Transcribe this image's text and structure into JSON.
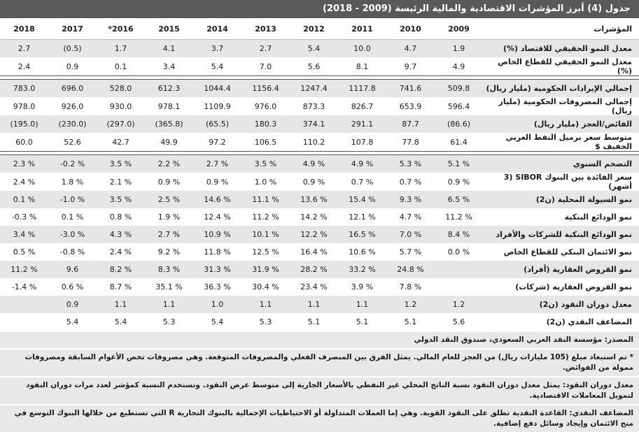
{
  "title": "جدول (4) أبرز المؤشرات الاقتصادية والمالية الرئيسة (2009 - 2018)",
  "table": {
    "header": [
      "المؤشرات",
      "2009",
      "2010",
      "2011",
      "2012",
      "2013",
      "2014",
      "2015",
      "2016*",
      "2017",
      "2018"
    ],
    "groups": [
      {
        "rows": [
          {
            "label": "معدل النمو الحقيقي للاقتصاد (%)",
            "values": [
              "1.9",
              "4.7",
              "10.0",
              "5.4",
              "2.7",
              "3.7",
              "4.1",
              "1.7",
              "(0.5)",
              "2.7"
            ]
          },
          {
            "label": "معدل النمو الحقيقي للقطاع الخاص (%)",
            "values": [
              "4.9",
              "9.7",
              "8.1",
              "5.6",
              "7.0",
              "5.4",
              "3.4",
              "0.1",
              "0.9",
              "2.4"
            ]
          }
        ]
      },
      {
        "rows": [
          {
            "label": "إجمالي الإيرادات الحكومية (مليار ريال)",
            "values": [
              "509.8",
              "741.6",
              "1117.8",
              "1247.4",
              "1156.4",
              "1044.4",
              "612.3",
              "528.0",
              "696.0",
              "783.0"
            ]
          },
          {
            "label": "إجمالي المصروفات الحكومية (مليار ريال)",
            "values": [
              "596.4",
              "653.9",
              "826.7",
              "873.3",
              "976.0",
              "1109.9",
              "978.1",
              "930.0",
              "926.0",
              "978.0"
            ]
          },
          {
            "label": "الفائض/العجز (مليار ريال)",
            "values": [
              "(86.6)",
              "87.7",
              "291.1",
              "374.1",
              "180.3",
              "(65.5)",
              "(365.8)",
              "(297.0)",
              "(230.0)",
              "(195.0)"
            ]
          },
          {
            "label": "متوسط سعر برميل النفط العربي الخفيف $",
            "values": [
              "61.4",
              "77.8",
              "107.8",
              "110.2",
              "106.5",
              "97.2",
              "49.9",
              "42.7",
              "52.6",
              "60.0"
            ]
          }
        ]
      },
      {
        "rows": [
          {
            "label": "التضخم السنوي",
            "values": [
              "5.1 %",
              "5.3 %",
              "4.9 %",
              "4.9 %",
              "3.5 %",
              "2.7 %",
              "2.2 %",
              "3.5 %",
              "-0.2 %",
              "2.3 %"
            ]
          },
          {
            "label": "سعر الفائدة بين البنوك SIBOR (3 أشهر)",
            "values": [
              "0.9 %",
              "0.7 %",
              "0.7 %",
              "0.9 %",
              "1.0 %",
              "0.9 %",
              "0.9 %",
              "2.1 %",
              "1.8 %",
              "2.4 %"
            ]
          },
          {
            "label": "نمو السيولة المحلية (ن2)",
            "values": [
              "6.5 %",
              "9.3 %",
              "15.4 %",
              "13.6 %",
              "11.1 %",
              "14.6 %",
              "2.5 %",
              "3.5 %",
              "-1.0 %",
              "0.1 %"
            ]
          },
          {
            "label": "نمو الودائع البنكية",
            "values": [
              "11.2 %",
              "4.7 %",
              "12.1 %",
              "14.2 %",
              "11.2 %",
              "12.4 %",
              "1.9 %",
              "0.8 %",
              "0.1 %",
              "-0.3 %"
            ]
          },
          {
            "label": "نمو الودائع البنكية للشركات والأفراد",
            "values": [
              "8.4 %",
              "7.0 %",
              "16.5 %",
              "12.2 %",
              "10.1 %",
              "10.9 %",
              "2.7 %",
              "4.3 %",
              "-3.0 %",
              "3.4 %"
            ]
          },
          {
            "label": "نمو الائتمان البنكي للقطاع الخاص",
            "values": [
              "0.0 %",
              "5.7 %",
              "10.6 %",
              "16.4 %",
              "12.5 %",
              "11.8 %",
              "9.2 %",
              "2.4 %",
              "-0.8 %",
              "0.5 %"
            ]
          },
          {
            "label": "نمو القروض العقارية (أفراد)",
            "values": [
              null,
              "24.8 %",
              "33.2 %",
              "28.2 %",
              "31.9 %",
              "31.3 %",
              "8.3 %",
              "8.2 %",
              "9.6",
              "11.2 %"
            ]
          },
          {
            "label": "نمو القروض العقارية (شركات)",
            "values": [
              null,
              "7.8 %",
              "3.9 %",
              "23.4 %",
              "30.4 %",
              "36.3 %",
              "35.1 %",
              "8.7 %",
              "0.6 %",
              "-1.4 %"
            ]
          },
          {
            "label": "معدل دوران النقود (ن2)",
            "values": [
              "1.2",
              "1.2",
              "1.1",
              "1.1",
              "1.1",
              "1.0",
              "1.1",
              "1.1",
              "0.9",
              null
            ]
          },
          {
            "label": "المضاعف النقدي (ن2)",
            "values": [
              "5.6",
              "5.1",
              "5.1",
              "5.1",
              "5.3",
              "5.4",
              "5.3",
              "5.4",
              "5.4",
              null
            ]
          }
        ]
      }
    ]
  },
  "notes": [
    "المصدر: مؤسسة النقد العربي السعودي، صندوق النقد الدولي",
    "* تم استبعاد مبلغ (105 مليارات ريال) من العجز للعام المالي. يمثل الفرق بين المنصرف الفعلي والمصروفات المتوقعة. وهي مصروفات تخص الأعوام السابقة ومصروفات ممولة من الفوائض.",
    "معدل دوران النقود: يمثل معدل دوران النقود نسبة الناتج المحلي غير النفطي بالأسعار الجارية إلى متوسط عرض النقود. وتستخدم النسبة كمؤشر لعدد مرات دوران النقود لتمويل المعاملات الاقتصادية.",
    "المضاعف النقدي: القاعدة النقدية تطلق على النقود القوية. وهي إما العملات المتداولة أو الاحتياطيات الإجمالية بالبنوك التجارية R التي تستطيع من خلالها البنوك التوسع في منح الائتمان وإيجاد وسائل دفع إضافية."
  ]
}
